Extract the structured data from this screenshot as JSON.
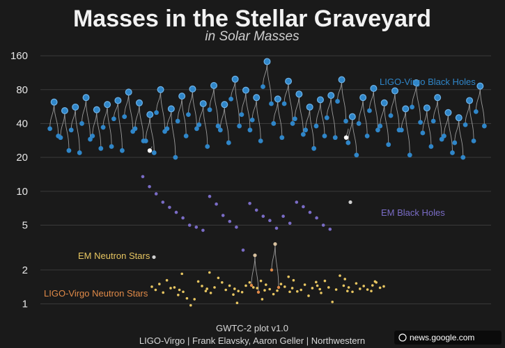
{
  "chart_data": {
    "type": "scatter",
    "title": "Masses in the Stellar Graveyard",
    "subtitle": "in Solar Masses",
    "y_scale": "log",
    "ylim": [
      0.85,
      190
    ],
    "yticks": [
      1,
      2,
      5,
      10,
      20,
      40,
      80,
      160
    ],
    "grid": true,
    "legend": [
      {
        "name": "LIGO-Virgo Black Holes",
        "color": "#2f86c9"
      },
      {
        "name": "EM Black Holes",
        "color": "#7a6cc6"
      },
      {
        "name": "EM Neutron Stars",
        "color": "#e8c661"
      },
      {
        "name": "LIGO-Virgo Neutron Stars",
        "color": "#e08a48"
      }
    ],
    "series": [
      {
        "name": "LIGO-Virgo Black Holes",
        "mergers": [
          [
            36,
            31,
            62
          ],
          [
            30,
            23,
            52
          ],
          [
            35,
            22,
            56
          ],
          [
            40,
            29,
            68
          ],
          [
            31,
            24,
            53
          ],
          [
            37,
            25,
            59
          ],
          [
            44,
            23,
            64
          ],
          [
            46,
            34,
            76
          ],
          [
            36,
            28,
            61
          ],
          [
            28,
            22,
            48
          ],
          [
            50,
            34,
            80
          ],
          [
            36,
            20,
            54
          ],
          [
            42,
            31,
            70
          ],
          [
            48,
            36,
            81
          ],
          [
            39,
            25,
            60
          ],
          [
            53,
            38,
            87
          ],
          [
            35,
            27,
            59
          ],
          [
            66,
            38,
            99
          ],
          [
            48,
            35,
            79
          ],
          [
            43,
            28,
            68
          ],
          [
            85,
            60,
            142
          ],
          [
            40,
            30,
            66
          ],
          [
            60,
            40,
            95
          ],
          [
            44,
            32,
            73
          ],
          [
            35,
            24,
            56
          ],
          [
            38,
            31,
            65
          ],
          [
            45,
            30,
            71
          ],
          [
            63,
            42,
            98
          ],
          [
            27,
            21,
            46
          ],
          [
            40,
            31,
            68
          ],
          [
            52,
            35,
            82
          ],
          [
            38,
            26,
            61
          ],
          [
            47,
            35,
            78
          ],
          [
            35,
            21,
            54
          ],
          [
            56,
            41,
            92
          ],
          [
            33,
            25,
            55
          ],
          [
            42,
            29,
            68
          ],
          [
            31,
            22,
            50
          ],
          [
            27,
            20,
            45
          ],
          [
            39,
            28,
            64
          ],
          [
            51,
            38,
            86
          ]
        ]
      },
      {
        "name": "EM Black Holes",
        "values": [
          13.5,
          11,
          9.5,
          8,
          7.2,
          6.5,
          5.8,
          5,
          4.8,
          4.5,
          9,
          7.7,
          6.1,
          5.4,
          4.8,
          3,
          7.8,
          6.8,
          6,
          5.5,
          4.7,
          6,
          5.2,
          8,
          7.3,
          6.5,
          5.8,
          5,
          4.6
        ]
      },
      {
        "name": "EM Neutron Stars",
        "values": [
          1.42,
          1.33,
          1.5,
          1.26,
          1.62,
          1.38,
          1.4,
          1.2,
          1.85,
          1.33,
          1.28,
          1.12,
          0.97,
          1.1,
          1.58,
          1.44,
          1.3,
          1.9,
          1.36,
          1.25,
          1.4,
          1.7,
          1.55,
          1.33,
          1.45,
          1.21,
          1.02,
          1.36,
          1.3,
          1.27,
          1.45,
          1.55,
          1.4,
          1.38,
          1.6,
          1.32,
          1.1,
          1.48,
          1.35,
          1.22,
          1.31,
          1.5,
          1.42,
          1.74,
          1.38,
          1.28,
          1.62,
          1.29,
          1.33,
          1.48,
          1.18,
          1.38,
          1.56,
          1.35,
          1.45,
          1.25,
          1.6,
          1.4,
          1.04,
          1.34,
          1.78,
          1.45,
          1.3,
          1.66,
          1.4,
          1.28,
          1.52,
          1.36,
          1.44,
          1.34,
          1.3,
          1.58,
          1.46,
          1.55,
          1.39,
          1.43
        ]
      },
      {
        "name": "LIGO-Virgo Neutron Stars",
        "mergers": [
          [
            1.46,
            1.27,
            2.7
          ],
          [
            2.0,
            1.4,
            3.4
          ]
        ]
      }
    ],
    "special_events": [
      {
        "masses": [
          23,
          2.6
        ],
        "remnant": 25
      },
      {
        "masses": [
          30,
          8
        ],
        "remnant": 36
      }
    ],
    "credit_line1": "GWTC-2 plot v1.0",
    "credit_line2": "LIGO-Virgo | Frank Elavsky, Aaron Geller | Northwestern"
  },
  "watermark": "news.google.com"
}
